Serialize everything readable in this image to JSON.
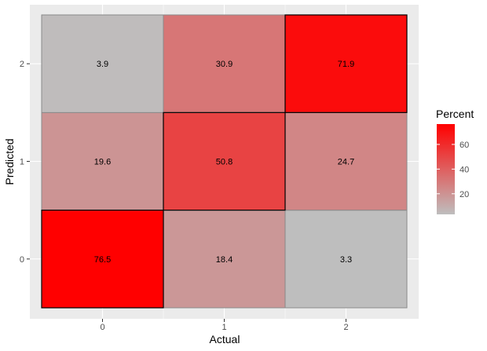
{
  "chart_data": {
    "type": "heatmap",
    "xlabel": "Actual",
    "ylabel": "Predicted",
    "x_categories": [
      "0",
      "1",
      "2"
    ],
    "y_categories": [
      "0",
      "1",
      "2"
    ],
    "cells": [
      {
        "x": "0",
        "y": "0",
        "value": 76.5,
        "label": "76.5",
        "highlight": true
      },
      {
        "x": "1",
        "y": "0",
        "value": 18.4,
        "label": "18.4",
        "highlight": false
      },
      {
        "x": "2",
        "y": "0",
        "value": 3.3,
        "label": "3.3",
        "highlight": false
      },
      {
        "x": "0",
        "y": "1",
        "value": 19.6,
        "label": "19.6",
        "highlight": false
      },
      {
        "x": "1",
        "y": "1",
        "value": 50.8,
        "label": "50.8",
        "highlight": true
      },
      {
        "x": "2",
        "y": "1",
        "value": 24.7,
        "label": "24.7",
        "highlight": false
      },
      {
        "x": "0",
        "y": "2",
        "value": 3.9,
        "label": "3.9",
        "highlight": false
      },
      {
        "x": "1",
        "y": "2",
        "value": 30.9,
        "label": "30.9",
        "highlight": false
      },
      {
        "x": "2",
        "y": "2",
        "value": 71.9,
        "label": "71.9",
        "highlight": true
      }
    ],
    "legend": {
      "title": "Percent",
      "breaks": [
        "20",
        "40",
        "60"
      ],
      "break_values": [
        20,
        40,
        60
      ],
      "range": [
        3.3,
        76.5
      ],
      "low_color": "#bebebe",
      "high_color": "#ff0000",
      "placement": "right"
    },
    "grid": true,
    "panel_background": "#ebebeb"
  }
}
